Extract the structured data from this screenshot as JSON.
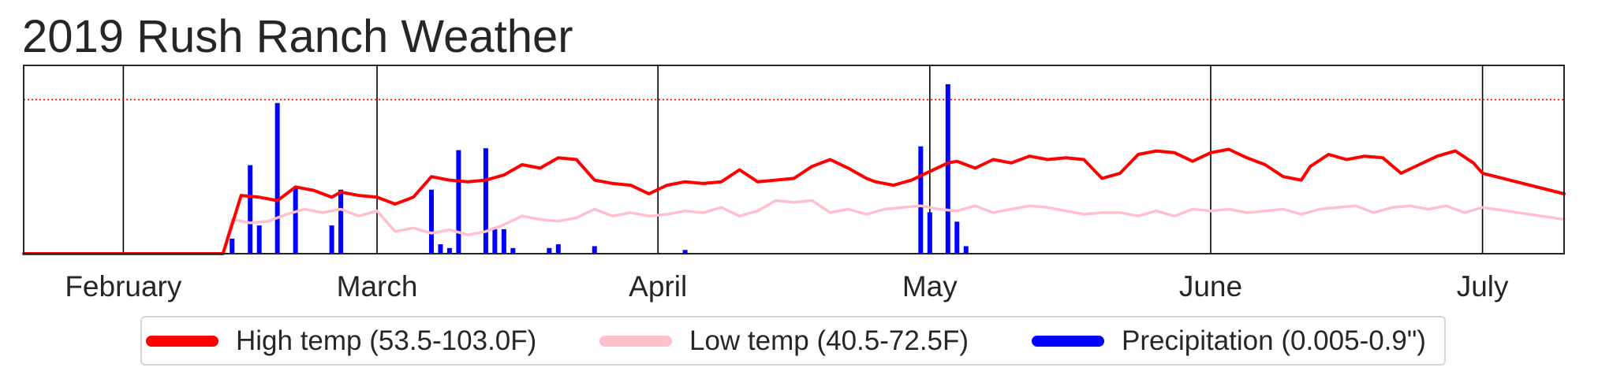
{
  "chart_data": {
    "type": "line",
    "title": "2019 Rush Ranch Weather",
    "xlabel": "",
    "ylabel": "",
    "x_axis": {
      "type": "date",
      "range": [
        "2019-01-21",
        "2019-07-10"
      ],
      "ticks": [
        {
          "date": "2019-02-01",
          "label": "February"
        },
        {
          "date": "2019-03-01",
          "label": "March"
        },
        {
          "date": "2019-04-01",
          "label": "April"
        },
        {
          "date": "2019-05-01",
          "label": "May"
        },
        {
          "date": "2019-06-01",
          "label": "June"
        },
        {
          "date": "2019-07-01",
          "label": "July"
        }
      ],
      "gridlines": [
        "2019-02-01",
        "2019-03-01",
        "2019-04-01",
        "2019-05-01",
        "2019-06-01",
        "2019-07-01"
      ]
    },
    "y_axis": {
      "range": [
        0,
        110
      ],
      "shown": false
    },
    "reference_line": {
      "value": 90,
      "style": "dotted",
      "color": "#ff0000"
    },
    "legend": {
      "placement": "bottom-center"
    },
    "series": [
      {
        "name": "High temp (53.5-103.0F)",
        "type": "line",
        "color": "#ff0000",
        "points": [
          [
            "2019-01-21",
            0
          ],
          [
            "2019-02-12",
            0
          ],
          [
            "2019-02-14",
            34
          ],
          [
            "2019-02-16",
            33
          ],
          [
            "2019-02-18",
            31
          ],
          [
            "2019-02-19",
            35
          ],
          [
            "2019-02-20",
            39
          ],
          [
            "2019-02-22",
            37
          ],
          [
            "2019-02-24",
            33
          ],
          [
            "2019-02-25",
            36
          ],
          [
            "2019-02-27",
            34
          ],
          [
            "2019-03-01",
            33
          ],
          [
            "2019-03-03",
            29
          ],
          [
            "2019-03-05",
            33
          ],
          [
            "2019-03-07",
            45
          ],
          [
            "2019-03-09",
            43
          ],
          [
            "2019-03-11",
            42
          ],
          [
            "2019-03-13",
            43
          ],
          [
            "2019-03-15",
            46
          ],
          [
            "2019-03-17",
            52
          ],
          [
            "2019-03-19",
            50
          ],
          [
            "2019-03-21",
            56
          ],
          [
            "2019-03-23",
            55
          ],
          [
            "2019-03-25",
            43
          ],
          [
            "2019-03-27",
            41
          ],
          [
            "2019-03-29",
            40
          ],
          [
            "2019-03-31",
            35
          ],
          [
            "2019-04-02",
            40
          ],
          [
            "2019-04-04",
            42
          ],
          [
            "2019-04-06",
            41
          ],
          [
            "2019-04-08",
            42
          ],
          [
            "2019-04-10",
            49
          ],
          [
            "2019-04-12",
            42
          ],
          [
            "2019-04-14",
            43
          ],
          [
            "2019-04-16",
            44
          ],
          [
            "2019-04-18",
            51
          ],
          [
            "2019-04-20",
            55
          ],
          [
            "2019-04-22",
            50
          ],
          [
            "2019-04-24",
            44
          ],
          [
            "2019-04-25",
            42
          ],
          [
            "2019-04-27",
            40
          ],
          [
            "2019-04-29",
            43
          ],
          [
            "2019-05-01",
            48
          ],
          [
            "2019-05-03",
            53
          ],
          [
            "2019-05-04",
            54
          ],
          [
            "2019-05-06",
            50
          ],
          [
            "2019-05-08",
            55
          ],
          [
            "2019-05-10",
            53
          ],
          [
            "2019-05-12",
            57
          ],
          [
            "2019-05-14",
            55
          ],
          [
            "2019-05-16",
            56
          ],
          [
            "2019-05-18",
            55
          ],
          [
            "2019-05-20",
            44
          ],
          [
            "2019-05-22",
            47
          ],
          [
            "2019-05-24",
            58
          ],
          [
            "2019-05-26",
            60
          ],
          [
            "2019-05-28",
            59
          ],
          [
            "2019-05-30",
            54
          ],
          [
            "2019-06-01",
            59
          ],
          [
            "2019-06-03",
            61
          ],
          [
            "2019-06-05",
            56
          ],
          [
            "2019-06-07",
            52
          ],
          [
            "2019-06-09",
            45
          ],
          [
            "2019-06-11",
            43
          ],
          [
            "2019-06-12",
            51
          ],
          [
            "2019-06-14",
            58
          ],
          [
            "2019-06-16",
            55
          ],
          [
            "2019-06-18",
            57
          ],
          [
            "2019-06-20",
            56
          ],
          [
            "2019-06-22",
            47
          ],
          [
            "2019-06-24",
            52
          ],
          [
            "2019-06-26",
            57
          ],
          [
            "2019-06-28",
            60
          ],
          [
            "2019-06-30",
            53
          ],
          [
            "2019-07-01",
            47
          ],
          [
            "2019-07-10",
            35
          ]
        ]
      },
      {
        "name": "Low temp (40.5-72.5F)",
        "type": "line",
        "color": "#ffc0cb",
        "points": [
          [
            "2019-01-21",
            0
          ],
          [
            "2019-02-12",
            0
          ],
          [
            "2019-02-13",
            20
          ],
          [
            "2019-02-15",
            18
          ],
          [
            "2019-02-17",
            19
          ],
          [
            "2019-02-19",
            23
          ],
          [
            "2019-02-21",
            26
          ],
          [
            "2019-02-23",
            24
          ],
          [
            "2019-02-25",
            26
          ],
          [
            "2019-02-27",
            22
          ],
          [
            "2019-03-01",
            25
          ],
          [
            "2019-03-03",
            13
          ],
          [
            "2019-03-05",
            15
          ],
          [
            "2019-03-07",
            12
          ],
          [
            "2019-03-09",
            14
          ],
          [
            "2019-03-11",
            11
          ],
          [
            "2019-03-13",
            13
          ],
          [
            "2019-03-15",
            17
          ],
          [
            "2019-03-17",
            22
          ],
          [
            "2019-03-19",
            20
          ],
          [
            "2019-03-21",
            19
          ],
          [
            "2019-03-23",
            21
          ],
          [
            "2019-03-25",
            26
          ],
          [
            "2019-03-27",
            22
          ],
          [
            "2019-03-29",
            24
          ],
          [
            "2019-03-31",
            22
          ],
          [
            "2019-04-02",
            23
          ],
          [
            "2019-04-04",
            25
          ],
          [
            "2019-04-06",
            24
          ],
          [
            "2019-04-08",
            27
          ],
          [
            "2019-04-10",
            22
          ],
          [
            "2019-04-12",
            25
          ],
          [
            "2019-04-14",
            31
          ],
          [
            "2019-04-16",
            30
          ],
          [
            "2019-04-18",
            31
          ],
          [
            "2019-04-20",
            24
          ],
          [
            "2019-04-22",
            26
          ],
          [
            "2019-04-24",
            23
          ],
          [
            "2019-04-26",
            26
          ],
          [
            "2019-04-28",
            27
          ],
          [
            "2019-04-30",
            28
          ],
          [
            "2019-05-02",
            26
          ],
          [
            "2019-05-04",
            25
          ],
          [
            "2019-05-06",
            28
          ],
          [
            "2019-05-08",
            24
          ],
          [
            "2019-05-10",
            26
          ],
          [
            "2019-05-12",
            28
          ],
          [
            "2019-05-14",
            27
          ],
          [
            "2019-05-16",
            25
          ],
          [
            "2019-05-18",
            23
          ],
          [
            "2019-05-20",
            24
          ],
          [
            "2019-05-22",
            24
          ],
          [
            "2019-05-24",
            22
          ],
          [
            "2019-05-26",
            25
          ],
          [
            "2019-05-28",
            22
          ],
          [
            "2019-05-30",
            26
          ],
          [
            "2019-06-01",
            25
          ],
          [
            "2019-06-03",
            26
          ],
          [
            "2019-06-05",
            24
          ],
          [
            "2019-06-07",
            25
          ],
          [
            "2019-06-09",
            26
          ],
          [
            "2019-06-11",
            23
          ],
          [
            "2019-06-13",
            26
          ],
          [
            "2019-06-15",
            27
          ],
          [
            "2019-06-17",
            28
          ],
          [
            "2019-06-19",
            24
          ],
          [
            "2019-06-21",
            27
          ],
          [
            "2019-06-23",
            28
          ],
          [
            "2019-06-25",
            26
          ],
          [
            "2019-06-27",
            28
          ],
          [
            "2019-06-29",
            24
          ],
          [
            "2019-07-01",
            27
          ],
          [
            "2019-07-10",
            20
          ]
        ]
      },
      {
        "name": "Precipitation (0.005-0.9\")",
        "type": "bar",
        "color": "#0000ff",
        "points": [
          [
            "2019-02-13",
            0.08
          ],
          [
            "2019-02-15",
            0.47
          ],
          [
            "2019-02-16",
            0.15
          ],
          [
            "2019-02-18",
            0.8
          ],
          [
            "2019-02-20",
            0.35
          ],
          [
            "2019-02-24",
            0.15
          ],
          [
            "2019-02-25",
            0.34
          ],
          [
            "2019-03-07",
            0.34
          ],
          [
            "2019-03-08",
            0.05
          ],
          [
            "2019-03-09",
            0.03
          ],
          [
            "2019-03-10",
            0.55
          ],
          [
            "2019-03-13",
            0.56
          ],
          [
            "2019-03-14",
            0.13
          ],
          [
            "2019-03-15",
            0.13
          ],
          [
            "2019-03-16",
            0.03
          ],
          [
            "2019-03-20",
            0.03
          ],
          [
            "2019-03-21",
            0.05
          ],
          [
            "2019-03-25",
            0.04
          ],
          [
            "2019-04-04",
            0.02
          ],
          [
            "2019-04-30",
            0.57
          ],
          [
            "2019-05-01",
            0.22
          ],
          [
            "2019-05-03",
            0.9
          ],
          [
            "2019-05-04",
            0.17
          ],
          [
            "2019-05-05",
            0.04
          ]
        ]
      }
    ]
  }
}
